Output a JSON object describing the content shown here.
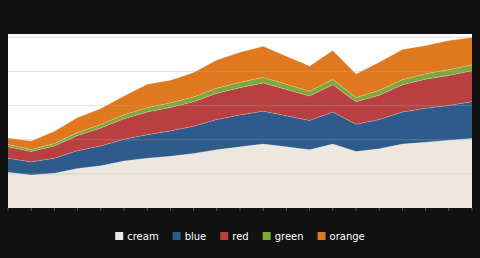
{
  "chart_data": {
    "type": "area",
    "stacked": true,
    "x": [
      0,
      1,
      2,
      3,
      4,
      5,
      6,
      7,
      8,
      9,
      10,
      11,
      12,
      13,
      14,
      15,
      16,
      17,
      18,
      19,
      20
    ],
    "xlim": [
      0,
      20
    ],
    "xticks": [
      0,
      1,
      2,
      3,
      4,
      5,
      6,
      7,
      8,
      9,
      10,
      11,
      12,
      13,
      14,
      15,
      16,
      17,
      18,
      19,
      20
    ],
    "ylim": [
      0,
      18502.8
    ],
    "yticks": [
      3628,
      7256,
      10884,
      14512,
      18140
    ],
    "grid": true,
    "tick_labels": false,
    "legend": "bottom",
    "series": [
      {
        "name": "cream",
        "color": "#ede8df",
        "values": [
          3800,
          3500,
          3700,
          4200,
          4500,
          5000,
          5300,
          5500,
          5800,
          6200,
          6500,
          6800,
          6500,
          6200,
          6800,
          6000,
          6300,
          6800,
          7000,
          7200,
          7400
        ]
      },
      {
        "name": "blue",
        "color": "#2e5b8a",
        "values": [
          1500,
          1400,
          1600,
          1900,
          2100,
          2300,
          2500,
          2700,
          2900,
          3200,
          3400,
          3500,
          3300,
          3100,
          3400,
          2900,
          3100,
          3400,
          3600,
          3700,
          3900
        ]
      },
      {
        "name": "red",
        "color": "#b94040",
        "values": [
          1200,
          1100,
          1300,
          1600,
          1900,
          2200,
          2400,
          2500,
          2600,
          2800,
          2900,
          3000,
          2800,
          2600,
          2900,
          2400,
          2600,
          2900,
          3100,
          3200,
          3300
        ]
      },
      {
        "name": "green",
        "color": "#7ea83a",
        "values": [
          250,
          220,
          260,
          320,
          370,
          420,
          460,
          480,
          510,
          540,
          570,
          590,
          550,
          510,
          560,
          460,
          500,
          550,
          580,
          600,
          620
        ]
      },
      {
        "name": "orange",
        "color": "#e07820",
        "values": [
          700,
          900,
          1300,
          1600,
          1700,
          2000,
          2500,
          2400,
          2600,
          3000,
          3200,
          3300,
          3000,
          2700,
          3100,
          2500,
          3000,
          3200,
          3000,
          3100,
          2900
        ]
      }
    ]
  }
}
